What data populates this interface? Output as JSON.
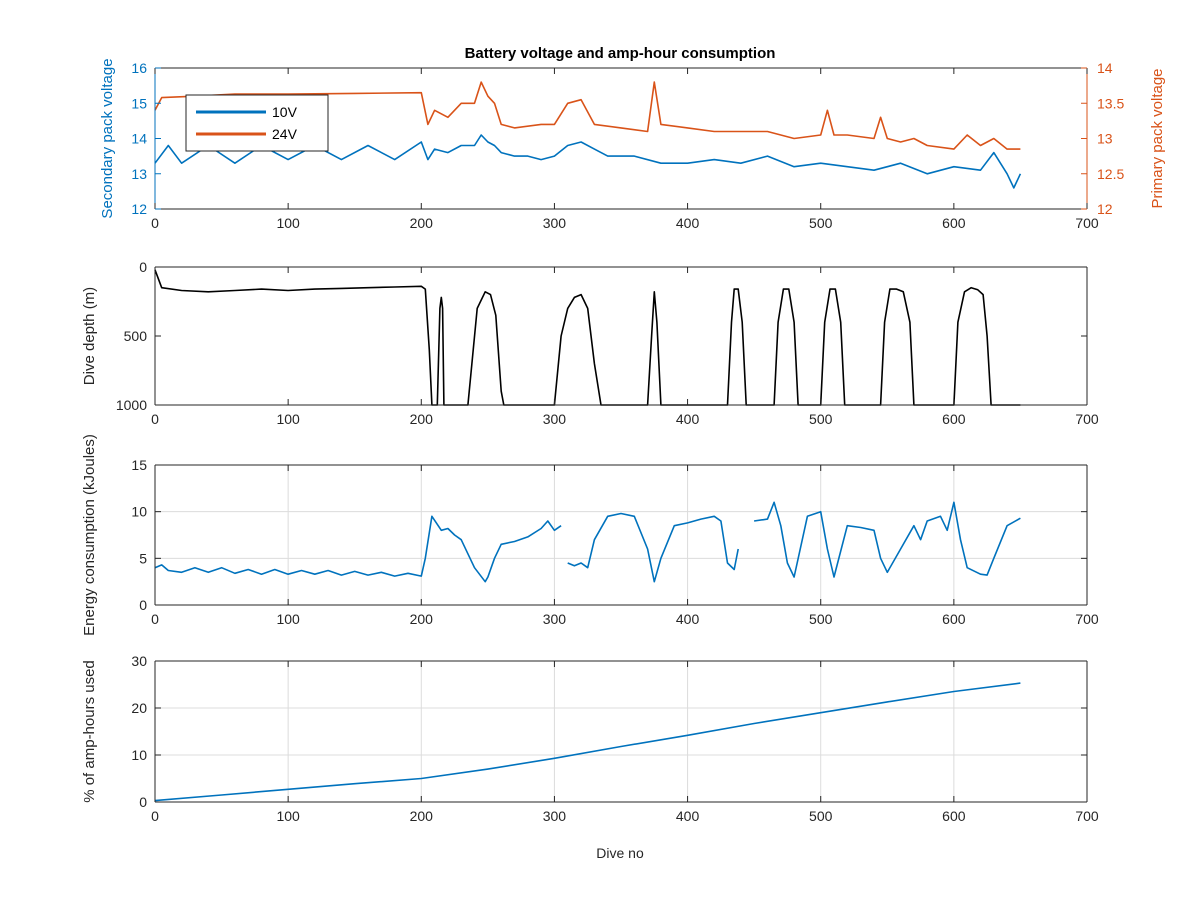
{
  "figure": {
    "title": "Battery voltage and amp-hour consumption",
    "xlabel": "Dive no"
  },
  "colors": {
    "blue": "#0072BD",
    "orange": "#D95319",
    "black": "#000000",
    "grid": "#dcdcdc",
    "axis": "#262626"
  },
  "chart_data": [
    {
      "type": "line",
      "title": "Battery voltage and amp-hour consumption",
      "xlabel": "",
      "ylabel": "Secondary pack voltage",
      "y2label": "Primary pack voltage",
      "xlim": [
        0,
        700
      ],
      "ylim": [
        12,
        16
      ],
      "y2lim": [
        12,
        14
      ],
      "xticks": [
        "0",
        "100",
        "200",
        "300",
        "400",
        "500",
        "600",
        "700"
      ],
      "yticks": [
        "12",
        "13",
        "14",
        "15",
        "16"
      ],
      "y2ticks": [
        "12",
        "12.5",
        "13",
        "13.5",
        "14"
      ],
      "grid": false,
      "legend": {
        "position": "top-left",
        "entries": [
          "10V",
          "24V"
        ]
      },
      "series": [
        {
          "name": "10V",
          "axis": "left",
          "color": "#0072BD",
          "x": [
            0,
            10,
            20,
            40,
            60,
            80,
            100,
            120,
            140,
            160,
            180,
            200,
            205,
            210,
            220,
            230,
            240,
            245,
            250,
            255,
            260,
            270,
            280,
            290,
            300,
            310,
            320,
            330,
            340,
            360,
            380,
            400,
            420,
            440,
            460,
            480,
            500,
            520,
            540,
            560,
            580,
            600,
            620,
            630,
            640,
            645,
            650
          ],
          "y": [
            13.3,
            13.8,
            13.3,
            13.8,
            13.3,
            13.8,
            13.4,
            13.8,
            13.4,
            13.8,
            13.4,
            13.9,
            13.4,
            13.7,
            13.6,
            13.8,
            13.8,
            14.1,
            13.9,
            13.8,
            13.6,
            13.5,
            13.5,
            13.4,
            13.5,
            13.8,
            13.9,
            13.7,
            13.5,
            13.5,
            13.3,
            13.3,
            13.4,
            13.3,
            13.5,
            13.2,
            13.3,
            13.2,
            13.1,
            13.3,
            13.0,
            13.2,
            13.1,
            13.6,
            13.0,
            12.6,
            13.0
          ]
        },
        {
          "name": "24V",
          "axis": "right",
          "color": "#D95319",
          "x": [
            0,
            5,
            30,
            60,
            100,
            150,
            200,
            205,
            210,
            220,
            230,
            240,
            245,
            250,
            255,
            260,
            270,
            290,
            300,
            310,
            320,
            330,
            350,
            370,
            375,
            380,
            400,
            420,
            440,
            460,
            480,
            500,
            505,
            510,
            520,
            540,
            545,
            550,
            560,
            570,
            580,
            600,
            610,
            620,
            630,
            640,
            650
          ],
          "y": [
            13.4,
            13.58,
            13.6,
            13.63,
            13.63,
            13.64,
            13.65,
            13.2,
            13.4,
            13.3,
            13.5,
            13.5,
            13.8,
            13.6,
            13.5,
            13.2,
            13.15,
            13.2,
            13.2,
            13.5,
            13.55,
            13.2,
            13.15,
            13.1,
            13.8,
            13.2,
            13.15,
            13.1,
            13.1,
            13.1,
            13.0,
            13.05,
            13.4,
            13.05,
            13.05,
            13.0,
            13.3,
            13.0,
            12.95,
            13.0,
            12.9,
            12.85,
            13.05,
            12.9,
            13.0,
            12.85,
            12.85
          ]
        }
      ]
    },
    {
      "type": "line",
      "title": "",
      "xlabel": "",
      "ylabel": "Dive depth (m)",
      "xlim": [
        0,
        700
      ],
      "ylim": [
        0,
        1000
      ],
      "y_reversed": true,
      "xticks": [
        "0",
        "100",
        "200",
        "300",
        "400",
        "500",
        "600",
        "700"
      ],
      "yticks": [
        "0",
        "500",
        "1000"
      ],
      "grid": false,
      "series": [
        {
          "color": "#000000",
          "x": [
            0,
            5,
            20,
            40,
            60,
            80,
            100,
            120,
            140,
            160,
            180,
            200,
            203,
            206,
            208,
            210,
            212,
            214,
            215,
            216,
            217,
            218,
            220,
            235,
            238,
            242,
            248,
            252,
            256,
            260,
            262,
            300,
            305,
            310,
            315,
            320,
            325,
            330,
            335,
            370,
            373,
            375,
            377,
            380,
            383,
            430,
            433,
            435,
            438,
            441,
            444,
            465,
            468,
            472,
            476,
            480,
            483,
            500,
            503,
            507,
            511,
            515,
            518,
            545,
            548,
            552,
            557,
            562,
            567,
            570,
            600,
            603,
            608,
            613,
            618,
            622,
            625,
            628,
            630,
            650
          ],
          "y": [
            20,
            150,
            170,
            180,
            170,
            160,
            170,
            160,
            155,
            150,
            145,
            140,
            160,
            600,
            1000,
            1000,
            1000,
            300,
            220,
            300,
            1000,
            1000,
            1000,
            1000,
            700,
            300,
            180,
            200,
            350,
            900,
            1000,
            1000,
            500,
            300,
            220,
            200,
            300,
            700,
            1000,
            1000,
            500,
            180,
            400,
            1000,
            1000,
            1000,
            400,
            160,
            160,
            400,
            1000,
            1000,
            400,
            160,
            160,
            400,
            1000,
            1000,
            400,
            160,
            160,
            400,
            1000,
            1000,
            400,
            160,
            160,
            180,
            400,
            1000,
            1000,
            400,
            180,
            150,
            165,
            200,
            500,
            1000,
            1000,
            1000
          ]
        }
      ]
    },
    {
      "type": "line",
      "title": "",
      "xlabel": "",
      "ylabel": "Energy consumption (kJoules)",
      "xlim": [
        0,
        700
      ],
      "ylim": [
        0,
        15
      ],
      "xticks": [
        "0",
        "100",
        "200",
        "300",
        "400",
        "500",
        "600",
        "700"
      ],
      "yticks": [
        "0",
        "5",
        "10",
        "15"
      ],
      "grid": true,
      "series": [
        {
          "color": "#0072BD",
          "x": [
            0,
            5,
            10,
            20,
            30,
            40,
            50,
            60,
            70,
            80,
            90,
            100,
            110,
            120,
            130,
            140,
            150,
            160,
            170,
            180,
            190,
            200,
            203,
            208,
            215,
            220,
            225,
            230,
            240,
            248,
            250,
            255,
            260,
            270,
            280,
            290,
            295,
            300,
            305,
            308,
            310,
            315,
            320,
            325,
            330,
            340,
            350,
            360,
            370,
            375,
            380,
            390,
            400,
            410,
            420,
            425,
            430,
            435,
            438,
            440,
            450,
            460,
            465,
            470,
            475,
            480,
            490,
            500,
            505,
            510,
            520,
            530,
            540,
            545,
            550,
            560,
            570,
            575,
            580,
            590,
            595,
            600,
            605,
            610,
            620,
            625,
            630,
            640,
            650
          ],
          "y": [
            4.0,
            4.3,
            3.7,
            3.5,
            4.0,
            3.5,
            4.0,
            3.4,
            3.8,
            3.3,
            3.8,
            3.3,
            3.7,
            3.3,
            3.7,
            3.2,
            3.6,
            3.2,
            3.5,
            3.1,
            3.4,
            3.1,
            5.0,
            9.5,
            8.0,
            8.2,
            7.5,
            7.0,
            4.0,
            2.5,
            3.0,
            5.0,
            6.5,
            6.8,
            7.3,
            8.2,
            9.0,
            8.0,
            8.5,
            null,
            4.5,
            4.2,
            4.5,
            4.0,
            7.0,
            9.5,
            9.8,
            9.5,
            6.0,
            2.5,
            5.0,
            8.5,
            8.8,
            9.2,
            9.5,
            9.0,
            4.5,
            3.8,
            6.0,
            null,
            9.0,
            9.2,
            11.0,
            8.5,
            4.5,
            3.0,
            9.5,
            10.0,
            6.0,
            3.0,
            8.5,
            8.3,
            8.0,
            5.0,
            3.5,
            6.0,
            8.5,
            7.0,
            9.0,
            9.5,
            8.0,
            11.0,
            7.0,
            4.0,
            3.3,
            3.2,
            5.0,
            8.5,
            9.3
          ]
        }
      ]
    },
    {
      "type": "line",
      "title": "",
      "xlabel": "Dive no",
      "ylabel": "% of amp-hours used",
      "xlim": [
        0,
        700
      ],
      "ylim": [
        0,
        30
      ],
      "xticks": [
        "0",
        "100",
        "200",
        "300",
        "400",
        "500",
        "600",
        "700"
      ],
      "yticks": [
        "0",
        "10",
        "20",
        "30"
      ],
      "grid": true,
      "series": [
        {
          "color": "#0072BD",
          "x": [
            0,
            50,
            100,
            150,
            200,
            250,
            300,
            350,
            400,
            450,
            500,
            550,
            600,
            650
          ],
          "y": [
            0.3,
            1.5,
            2.7,
            3.9,
            5.0,
            7.0,
            9.3,
            11.8,
            14.2,
            16.7,
            19.0,
            21.3,
            23.5,
            25.3
          ]
        }
      ]
    }
  ]
}
